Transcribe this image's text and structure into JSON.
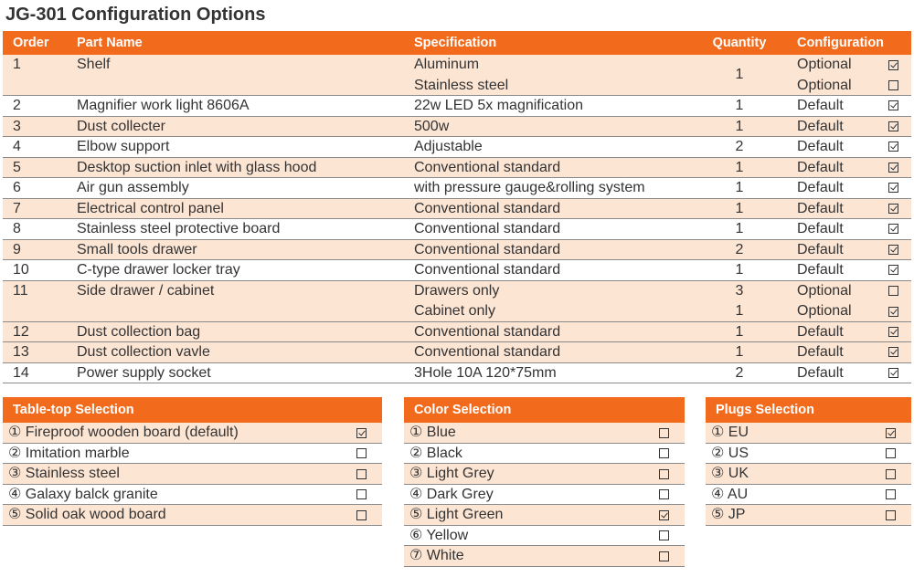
{
  "title": "JG-301 Configuration Options",
  "headers": {
    "order": "Order",
    "part": "Part Name",
    "spec": "Specification",
    "qty": "Quantity",
    "config": "Configuration"
  },
  "rows": [
    {
      "order": "1",
      "part": "Shelf",
      "options": [
        {
          "spec": "Aluminum",
          "config": "Optional",
          "checked": true
        },
        {
          "spec": "Stainless steel",
          "config": "Optional",
          "checked": false
        }
      ],
      "qty": "1"
    },
    {
      "order": "2",
      "part": "Magnifier work light 8606A",
      "spec": "22w LED 5x magnification",
      "qty": "1",
      "config": "Default",
      "checked": true
    },
    {
      "order": "3",
      "part": "Dust collecter",
      "spec": "500w",
      "qty": "1",
      "config": "Default",
      "checked": true
    },
    {
      "order": "4",
      "part": "Elbow support",
      "spec": "Adjustable",
      "qty": "2",
      "config": "Default",
      "checked": true
    },
    {
      "order": "5",
      "part": "Desktop suction inlet with glass hood",
      "spec": "Conventional standard",
      "qty": "1",
      "config": "Default",
      "checked": true
    },
    {
      "order": "6",
      "part": "Air gun assembly",
      "spec": "with pressure gauge&rolling system",
      "qty": "1",
      "config": "Default",
      "checked": true
    },
    {
      "order": "7",
      "part": "Electrical control panel",
      "spec": "Conventional standard",
      "qty": "1",
      "config": "Default",
      "checked": true
    },
    {
      "order": "8",
      "part": "Stainless steel protective board",
      "spec": "Conventional standard",
      "qty": "1",
      "config": "Default",
      "checked": true
    },
    {
      "order": "9",
      "part": "Small tools drawer",
      "spec": "Conventional standard",
      "qty": "2",
      "config": "Default",
      "checked": true
    },
    {
      "order": "10",
      "part": "C-type drawer locker tray",
      "spec": "Conventional standard",
      "qty": "1",
      "config": "Default",
      "checked": true
    },
    {
      "order": "11",
      "part": "Side drawer / cabinet",
      "options": [
        {
          "spec": "Drawers only",
          "qty": "3",
          "config": "Optional",
          "checked": false
        },
        {
          "spec": "Cabinet only",
          "qty": "1",
          "config": "Optional",
          "checked": true
        }
      ]
    },
    {
      "order": "12",
      "part": "Dust collection bag",
      "spec": "Conventional standard",
      "qty": "1",
      "config": "Default",
      "checked": true
    },
    {
      "order": "13",
      "part": "Dust collection vavle",
      "spec": "Conventional standard",
      "qty": "1",
      "config": "Default",
      "checked": true
    },
    {
      "order": "14",
      "part": "Power supply socket",
      "spec": "3Hole 10A 120*75mm",
      "qty": "2",
      "config": "Default",
      "checked": true
    }
  ],
  "tabletop": {
    "title": "Table-top Selection",
    "items": [
      {
        "label": "① Fireproof wooden board (default)",
        "checked": true
      },
      {
        "label": "② Imitation marble",
        "checked": false
      },
      {
        "label": "③ Stainless steel",
        "checked": false
      },
      {
        "label": "④ Galaxy balck granite",
        "checked": false
      },
      {
        "label": "⑤ Solid oak wood board",
        "checked": false
      }
    ]
  },
  "color": {
    "title": "Color Selection",
    "items": [
      {
        "label": "① Blue",
        "checked": false
      },
      {
        "label": "② Black",
        "checked": false
      },
      {
        "label": "③ Light Grey",
        "checked": false
      },
      {
        "label": "④ Dark Grey",
        "checked": false
      },
      {
        "label": "⑤ Light Green",
        "checked": true
      },
      {
        "label": "⑥ Yellow",
        "checked": false
      },
      {
        "label": "⑦ White",
        "checked": false
      }
    ]
  },
  "plugs": {
    "title": "Plugs Selection",
    "items": [
      {
        "label": "① EU",
        "checked": true
      },
      {
        "label": "② US",
        "checked": false
      },
      {
        "label": "③ UK",
        "checked": false
      },
      {
        "label": "④ AU",
        "checked": false
      },
      {
        "label": "⑤ JP",
        "checked": false
      }
    ]
  },
  "colors": {
    "accent": "#f26a1b",
    "stripe": "#fde5d4",
    "text": "#333333"
  }
}
